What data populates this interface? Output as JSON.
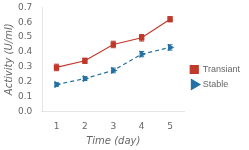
{
  "chart_data": {
    "type": "line",
    "xlabel": "Time (day)",
    "ylabel": "Activity (U/ml)",
    "x": [
      1,
      2,
      3,
      4,
      5
    ],
    "series": [
      {
        "name": "Transiant",
        "color": "#c0392b",
        "marker": "square",
        "line_style": "solid",
        "values": [
          0.295,
          0.34,
          0.45,
          0.495,
          0.62
        ],
        "errors": [
          0.022,
          0.018,
          0.022,
          0.022,
          0.018
        ]
      },
      {
        "name": "Stable",
        "color": "#2471a3",
        "marker": "triangle-right",
        "line_style": "dashed",
        "values": [
          0.18,
          0.22,
          0.275,
          0.385,
          0.43
        ],
        "errors": [
          0.012,
          0.013,
          0.016,
          0.018,
          0.018
        ]
      }
    ],
    "xlim": [
      0.5,
      5.5
    ],
    "xticks": [
      1,
      2,
      3,
      4,
      5
    ],
    "ylim": [
      0,
      0.7
    ],
    "yticks": [
      {
        "value": 0,
        "label": "0.0"
      },
      0.1,
      0.2,
      0.3,
      0.4,
      0.5,
      0.6,
      0.7
    ],
    "grid": false,
    "legend": "right"
  }
}
